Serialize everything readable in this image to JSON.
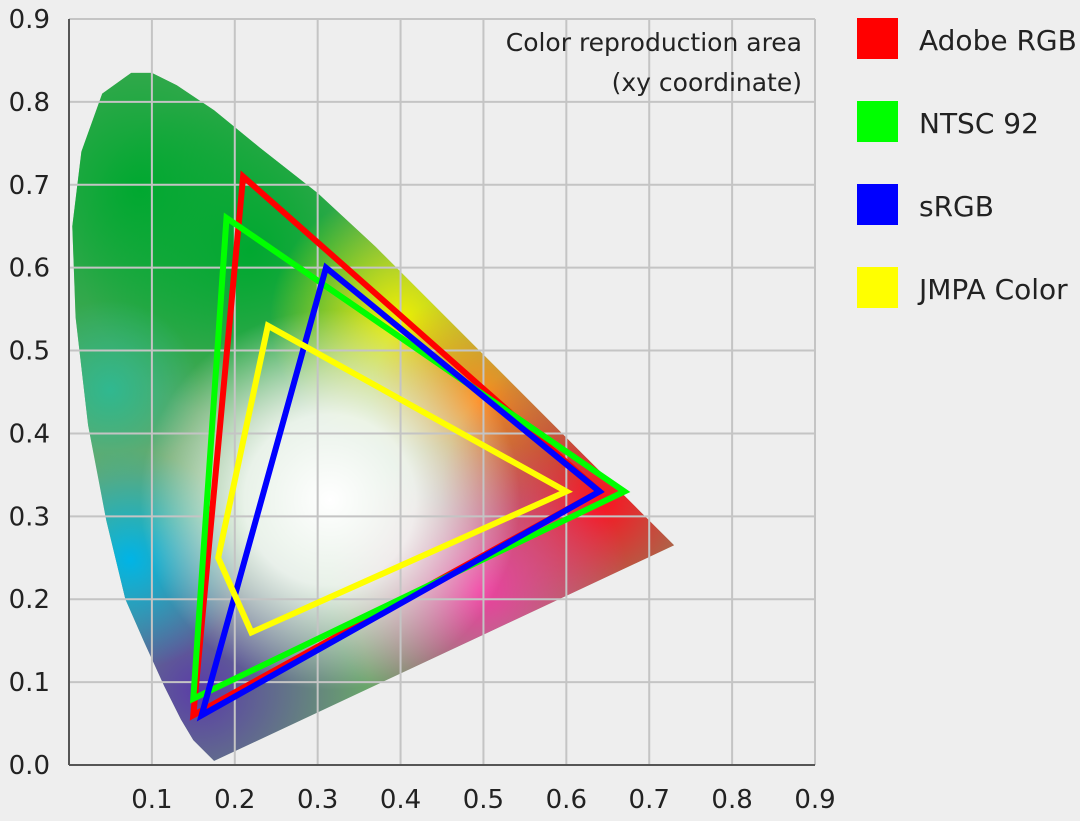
{
  "chart_data": {
    "type": "line",
    "title": "Color reproduction area",
    "subtitle": "(xy coordinate)",
    "xlabel": "",
    "ylabel": "",
    "xlim": [
      0,
      0.9
    ],
    "ylim": [
      0,
      0.9
    ],
    "x_ticks": [
      "0.1",
      "0.2",
      "0.3",
      "0.4",
      "0.5",
      "0.6",
      "0.7",
      "0.8",
      "0.9"
    ],
    "y_ticks": [
      "0.0",
      "0.1",
      "0.2",
      "0.3",
      "0.4",
      "0.5",
      "0.6",
      "0.7",
      "0.8",
      "0.9"
    ],
    "grid": true,
    "legend_position": "right",
    "spectral_locus": [
      [
        0.175,
        0.005
      ],
      [
        0.165,
        0.015
      ],
      [
        0.15,
        0.03
      ],
      [
        0.135,
        0.055
      ],
      [
        0.115,
        0.095
      ],
      [
        0.09,
        0.15
      ],
      [
        0.068,
        0.2
      ],
      [
        0.045,
        0.295
      ],
      [
        0.023,
        0.41
      ],
      [
        0.008,
        0.54
      ],
      [
        0.004,
        0.65
      ],
      [
        0.015,
        0.74
      ],
      [
        0.04,
        0.81
      ],
      [
        0.075,
        0.835
      ],
      [
        0.1,
        0.835
      ],
      [
        0.13,
        0.82
      ],
      [
        0.175,
        0.79
      ],
      [
        0.23,
        0.745
      ],
      [
        0.3,
        0.69
      ],
      [
        0.37,
        0.625
      ],
      [
        0.45,
        0.545
      ],
      [
        0.54,
        0.455
      ],
      [
        0.62,
        0.375
      ],
      [
        0.69,
        0.305
      ],
      [
        0.73,
        0.265
      ]
    ],
    "series": [
      {
        "name": "Adobe RGB",
        "color": "#ff0000",
        "points": [
          [
            0.64,
            0.33
          ],
          [
            0.21,
            0.71
          ],
          [
            0.15,
            0.06
          ]
        ]
      },
      {
        "name": "NTSC 92",
        "color": "#00ff00",
        "points": [
          [
            0.67,
            0.33
          ],
          [
            0.19,
            0.66
          ],
          [
            0.15,
            0.08
          ]
        ]
      },
      {
        "name": "sRGB",
        "color": "#0000ff",
        "points": [
          [
            0.64,
            0.33
          ],
          [
            0.31,
            0.6
          ],
          [
            0.16,
            0.06
          ]
        ]
      },
      {
        "name": "JMPA Color",
        "color": "#ffff00",
        "points": [
          [
            0.6,
            0.33
          ],
          [
            0.24,
            0.53
          ],
          [
            0.18,
            0.25
          ],
          [
            0.22,
            0.16
          ]
        ]
      }
    ]
  }
}
